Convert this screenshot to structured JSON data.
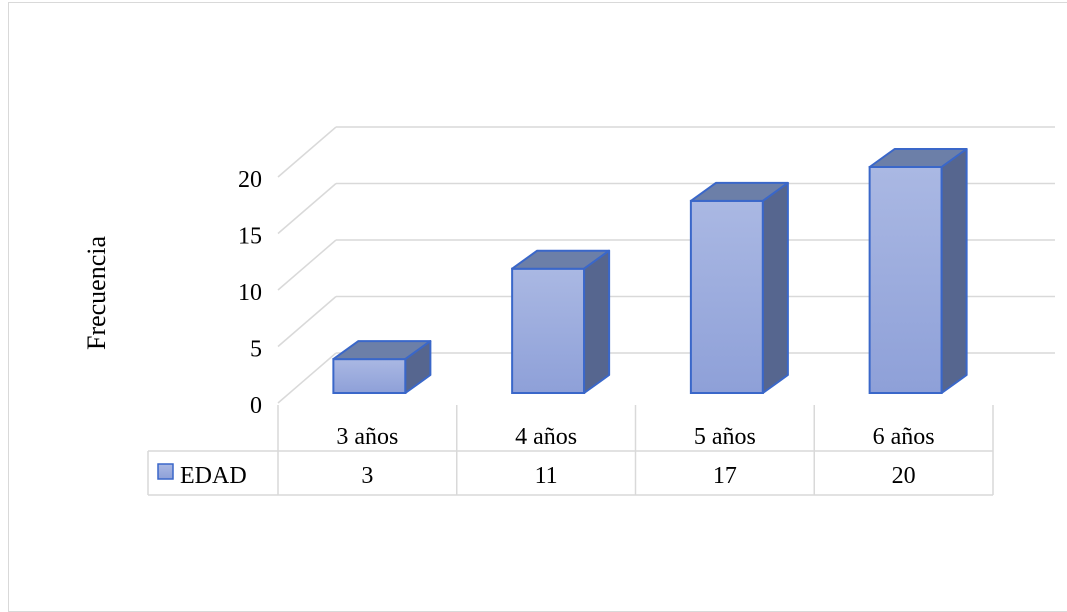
{
  "chart_data": {
    "type": "bar",
    "style": "3d-column-with-data-table",
    "title": "",
    "ylabel": "Frecuencia",
    "xlabel": "",
    "ylim": [
      0,
      20
    ],
    "yticks": [
      0,
      5,
      10,
      15,
      20
    ],
    "categories": [
      "3 años",
      "4 años",
      "5 años",
      "6 años"
    ],
    "series": [
      {
        "name": "EDAD",
        "values": [
          3,
          11,
          17,
          20
        ]
      }
    ],
    "data_table": {
      "row_label": "EDAD",
      "values": [
        "3",
        "11",
        "17",
        "20"
      ]
    },
    "grid": true,
    "legend": "data-table",
    "colors": {
      "bar_front_top": "#aab8e3",
      "bar_front_bottom": "#8ea0d8",
      "bar_top": "#6c7fa8",
      "bar_side": "#56668f",
      "bar_outline": "#3a67c9",
      "gridline": "#d9d9d9",
      "table_border": "#d9d9d9"
    }
  }
}
